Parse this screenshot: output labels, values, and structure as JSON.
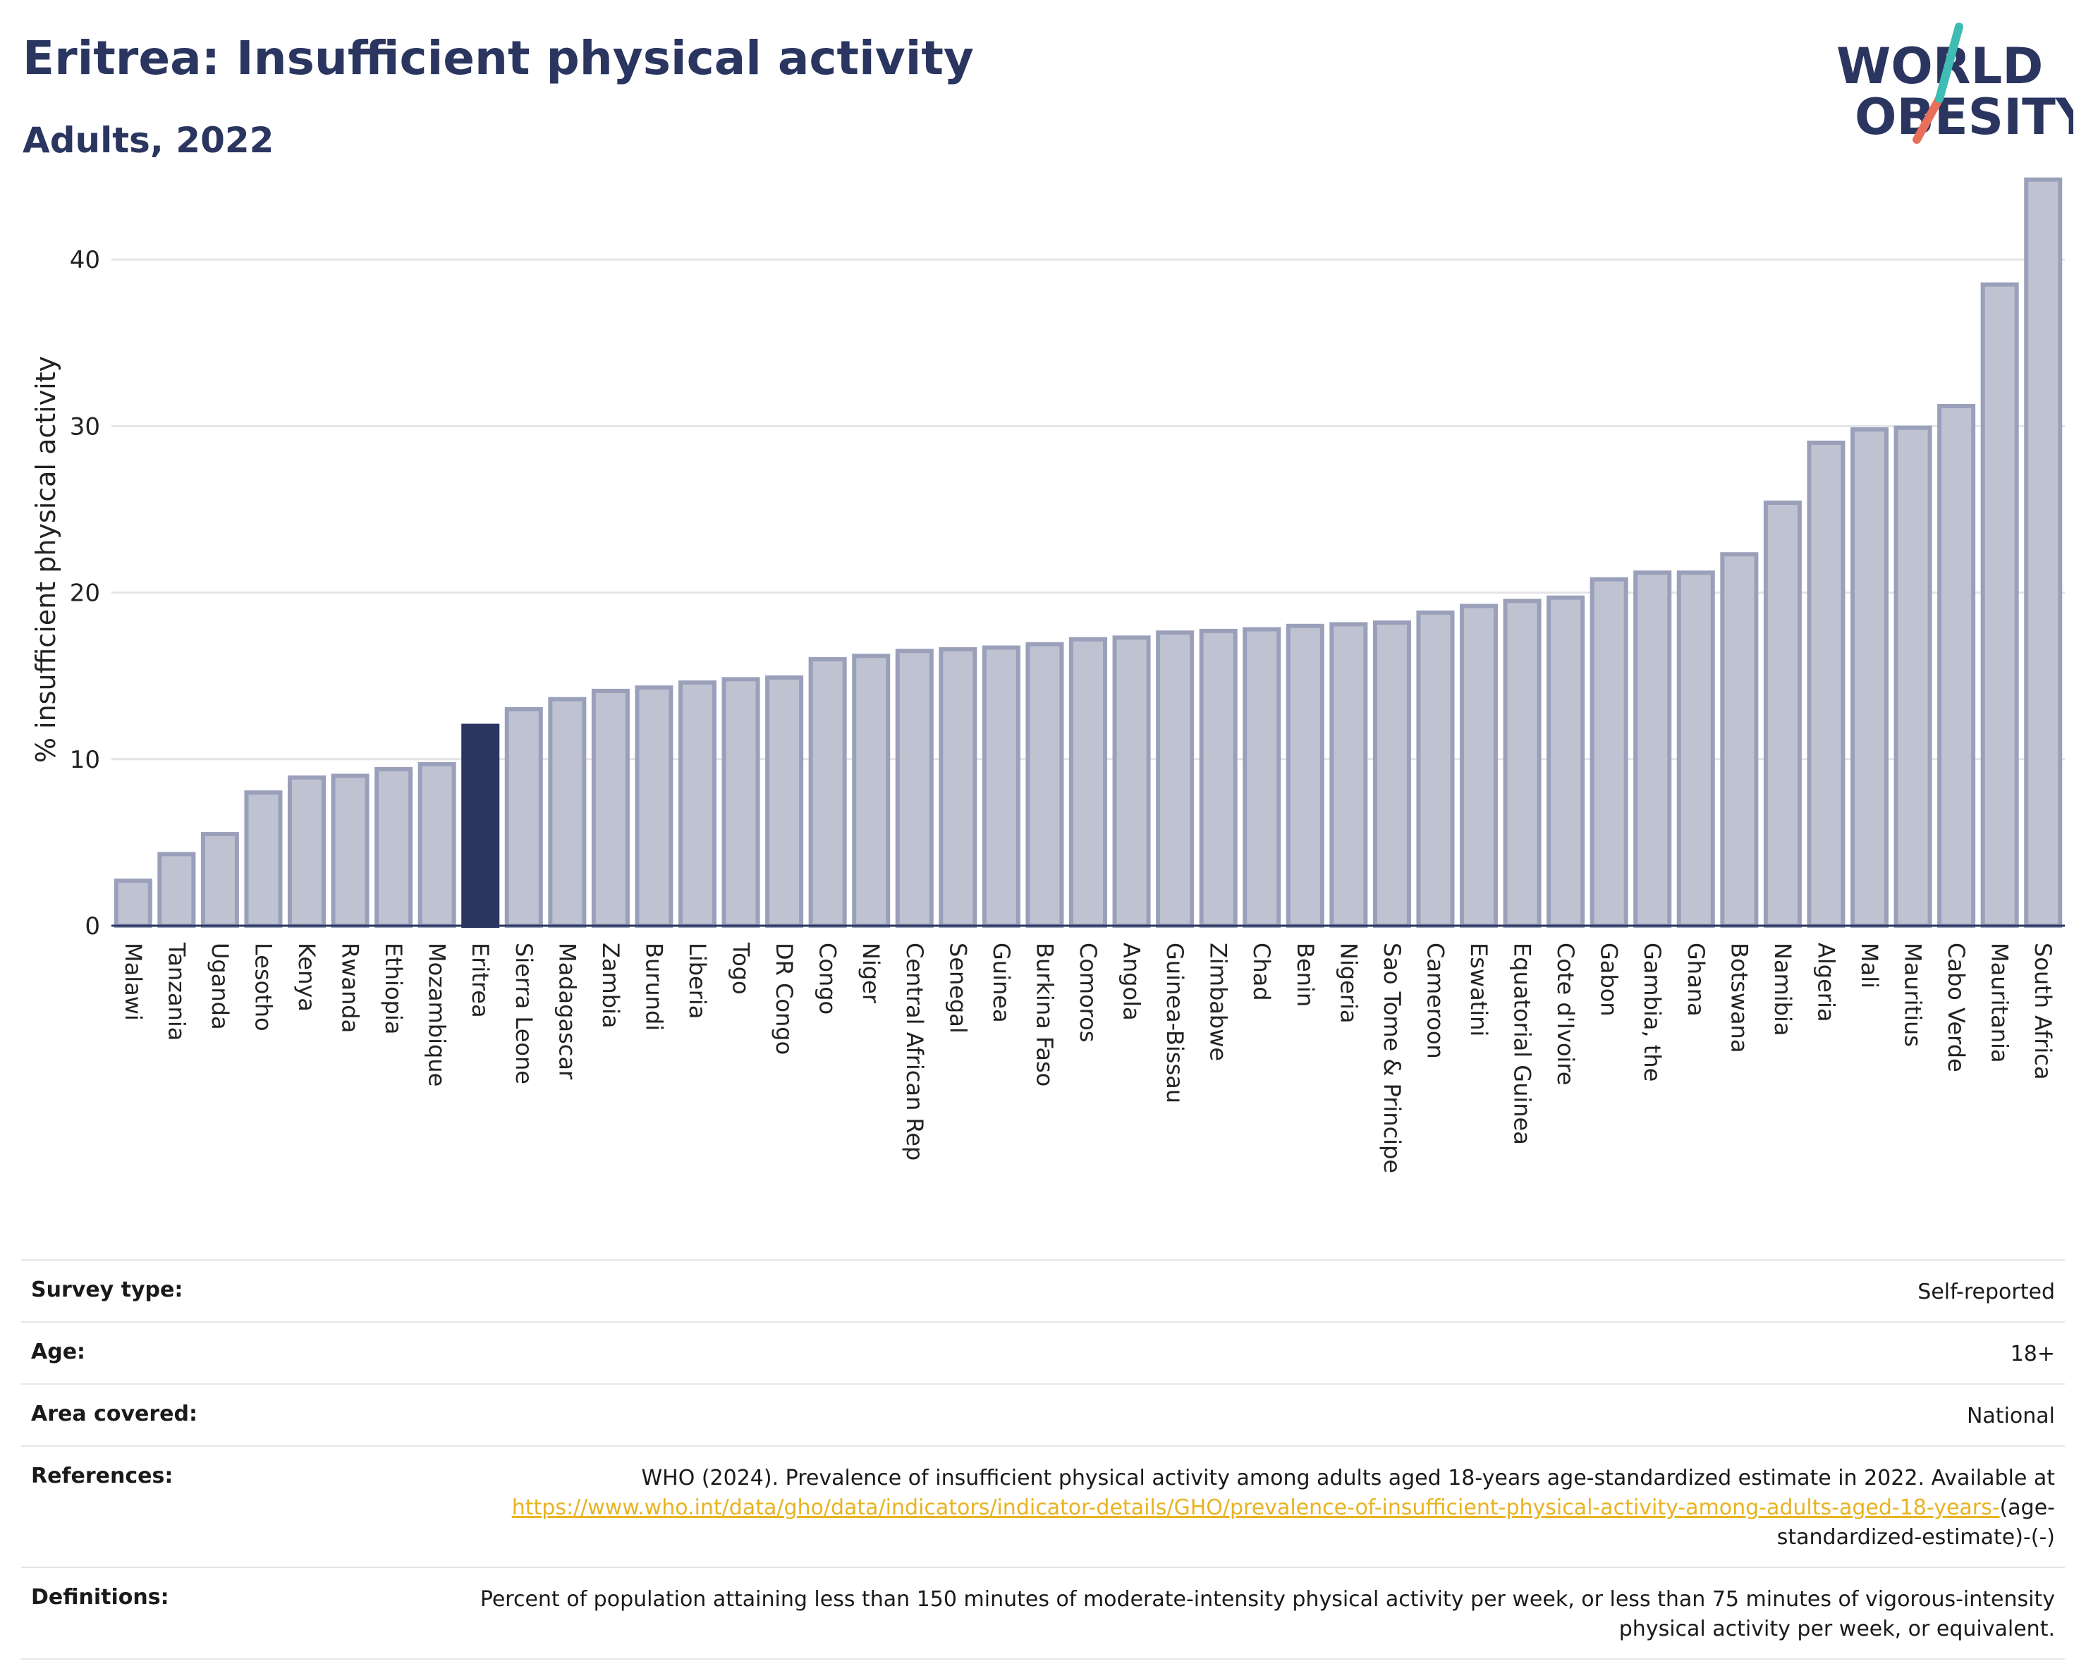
{
  "header": {
    "title": "Eritrea: Insufficient physical activity",
    "subtitle": "Adults, 2022"
  },
  "logo": {
    "line1": "WORLD",
    "line2": "OBESITY"
  },
  "colors": {
    "bar_fill": "#bfc3d1",
    "bar_stroke": "#9aa0ba",
    "highlight_fill": "#2a3560",
    "gridline": "#e4e4e8",
    "logo_teal": "#3fbcb4",
    "logo_coral": "#e8705a"
  },
  "chart_data": {
    "type": "bar",
    "ylabel": "% insufficient physical activity",
    "yticks": [
      0,
      10,
      20,
      30,
      40
    ],
    "ylim": [
      0,
      45
    ],
    "highlight": "Eritrea",
    "categories": [
      "Malawi",
      "Tanzania",
      "Uganda",
      "Lesotho",
      "Kenya",
      "Rwanda",
      "Ethiopia",
      "Mozambique",
      "Eritrea",
      "Sierra Leone",
      "Madagascar",
      "Zambia",
      "Burundi",
      "Liberia",
      "Togo",
      "DR Congo",
      "Congo",
      "Niger",
      "Central African Rep",
      "Senegal",
      "Guinea",
      "Burkina Faso",
      "Comoros",
      "Angola",
      "Guinea-Bissau",
      "Zimbabwe",
      "Chad",
      "Benin",
      "Nigeria",
      "Sao Tome & Principe",
      "Cameroon",
      "Eswatini",
      "Equatorial Guinea",
      "Cote d'Ivoire",
      "Gabon",
      "Gambia, the",
      "Ghana",
      "Botswana",
      "Namibia",
      "Algeria",
      "Mali",
      "Mauritius",
      "Cabo Verde",
      "Mauritania",
      "South Africa"
    ],
    "values": [
      2.7,
      4.3,
      5.5,
      8.0,
      8.9,
      9.0,
      9.4,
      9.7,
      12.0,
      13.0,
      13.6,
      14.1,
      14.3,
      14.6,
      14.8,
      14.9,
      16.0,
      16.2,
      16.5,
      16.6,
      16.7,
      16.9,
      17.2,
      17.3,
      17.6,
      17.7,
      17.8,
      18.0,
      18.1,
      18.2,
      18.8,
      19.2,
      19.5,
      19.7,
      20.8,
      21.2,
      21.2,
      22.3,
      25.4,
      29.0,
      29.8,
      29.9,
      31.2,
      38.5,
      44.8
    ]
  },
  "meta": {
    "survey_type": {
      "label": "Survey type:",
      "value": "Self-reported"
    },
    "age": {
      "label": "Age:",
      "value": "18+"
    },
    "area": {
      "label": "Area covered:",
      "value": "National"
    },
    "references": {
      "label": "References:",
      "text": "WHO (2024). Prevalence of insufficient physical activity among adults aged 18-years age-standardized estimate in 2022. Available at",
      "link": "https://www.who.int/data/gho/data/indicators/indicator-details/GHO/prevalence-of-insufficient-physical-activity-among-adults-aged-18-years-",
      "suffix": "(age-standardized-estimate)-(-)"
    },
    "definitions": {
      "label": "Definitions:",
      "value": "Percent of population attaining less than 150 minutes of moderate-intensity physical activity per week, or less than 75 minutes of vigorous-intensity physical activity per week, or equivalent."
    }
  }
}
